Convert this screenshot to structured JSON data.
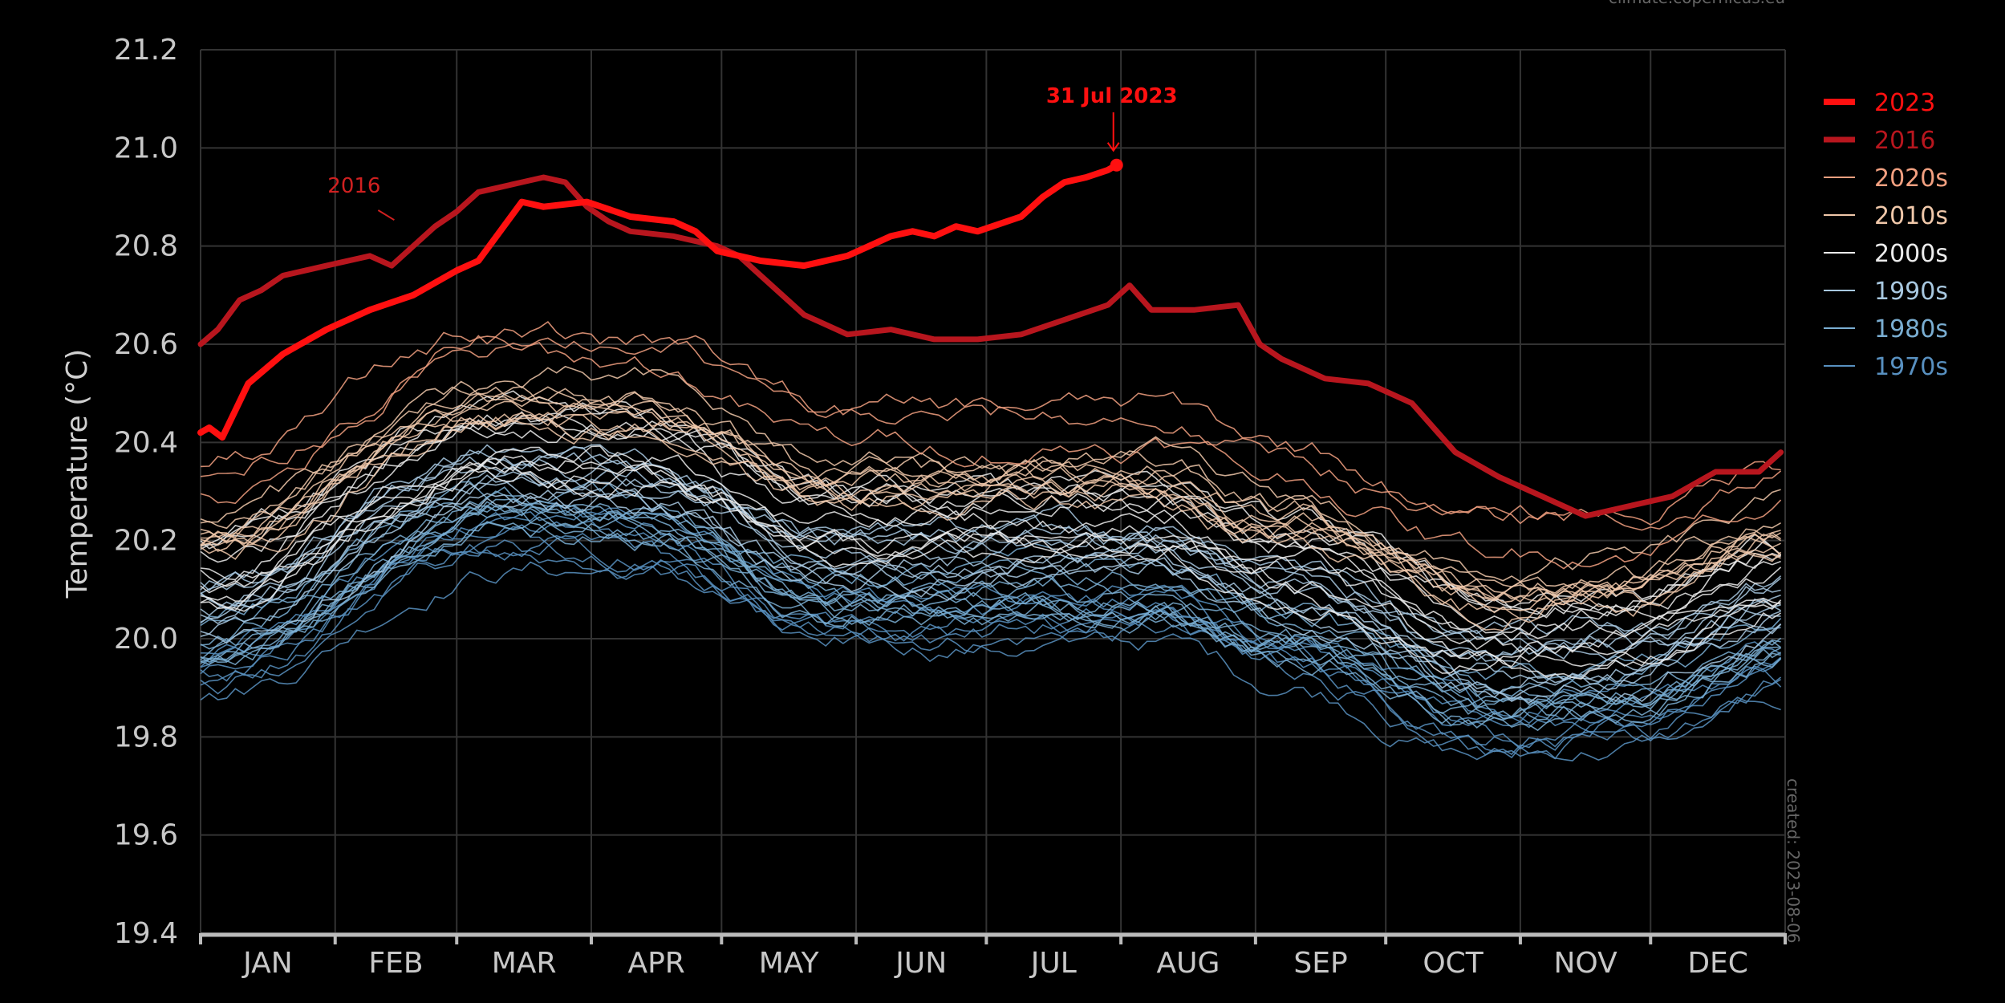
{
  "header": {
    "source_text": "climate.copernicus.eu"
  },
  "footer": {
    "created_text": "created: 2023-08-06"
  },
  "chart_data": {
    "type": "line",
    "title": "",
    "xlabel": "",
    "ylabel": "Temperature (°C)",
    "ylim": [
      19.4,
      21.2
    ],
    "yticks": [
      19.4,
      19.6,
      19.8,
      20.0,
      20.2,
      20.4,
      20.6,
      20.8,
      21.0,
      21.2
    ],
    "ytick_labels": [
      "19.4",
      "19.6",
      "19.8",
      "20.0",
      "20.2",
      "20.4",
      "20.6",
      "20.8",
      "21.0",
      "21.2"
    ],
    "xlim": [
      1,
      365
    ],
    "months": [
      "JAN",
      "FEB",
      "MAR",
      "APR",
      "MAY",
      "JUN",
      "JUL",
      "AUG",
      "SEP",
      "OCT",
      "NOV",
      "DEC"
    ],
    "month_starts": [
      1,
      32,
      60,
      91,
      121,
      152,
      182,
      213,
      244,
      274,
      305,
      335,
      366
    ],
    "grid": true,
    "legend_position": "right",
    "legend": [
      {
        "label": "2023",
        "color": "#ff1010",
        "width": 8
      },
      {
        "label": "2016",
        "color": "#b8161e",
        "width": 7
      },
      {
        "label": "2020s",
        "color": "#f2a080",
        "width": 2
      },
      {
        "label": "2010s",
        "color": "#f0c8aa",
        "width": 2
      },
      {
        "label": "2000s",
        "color": "#ececec",
        "width": 2
      },
      {
        "label": "1990s",
        "color": "#a8c8e0",
        "width": 2
      },
      {
        "label": "1980s",
        "color": "#7aaed2",
        "width": 2
      },
      {
        "label": "1970s",
        "color": "#5890c0",
        "width": 2
      }
    ],
    "annotations": [
      {
        "text": "31 Jul 2023",
        "x": 212,
        "y": 20.965,
        "color": "#ff1010"
      },
      {
        "text": "2016",
        "x": 53,
        "y": 20.84,
        "color": "#d02020"
      }
    ],
    "series": [
      {
        "name": "2023",
        "color": "#ff1010",
        "width": 8,
        "x": [
          1,
          3,
          6,
          12,
          20,
          30,
          40,
          50,
          60,
          65,
          70,
          75,
          80,
          90,
          100,
          110,
          115,
          120,
          125,
          130,
          140,
          150,
          155,
          160,
          165,
          170,
          175,
          180,
          190,
          195,
          200,
          205,
          210,
          212
        ],
        "y": [
          20.42,
          20.43,
          20.41,
          20.52,
          20.58,
          20.63,
          20.67,
          20.7,
          20.75,
          20.77,
          20.83,
          20.89,
          20.88,
          20.89,
          20.86,
          20.85,
          20.83,
          20.79,
          20.78,
          20.77,
          20.76,
          20.78,
          20.8,
          20.82,
          20.83,
          20.82,
          20.84,
          20.83,
          20.86,
          20.9,
          20.93,
          20.94,
          20.955,
          20.965
        ]
      },
      {
        "name": "2016",
        "color": "#b8161e",
        "width": 7,
        "x": [
          1,
          5,
          10,
          15,
          20,
          30,
          40,
          45,
          50,
          55,
          60,
          65,
          70,
          75,
          80,
          85,
          90,
          95,
          100,
          110,
          120,
          125,
          130,
          140,
          150,
          160,
          170,
          180,
          190,
          200,
          210,
          215,
          220,
          230,
          240,
          245,
          250,
          255,
          260,
          270,
          280,
          285,
          290,
          300,
          310,
          320,
          330,
          340,
          350,
          360,
          365
        ],
        "y": [
          20.6,
          20.63,
          20.69,
          20.71,
          20.74,
          20.76,
          20.78,
          20.76,
          20.8,
          20.84,
          20.87,
          20.91,
          20.92,
          20.93,
          20.94,
          20.93,
          20.88,
          20.85,
          20.83,
          20.82,
          20.8,
          20.78,
          20.74,
          20.66,
          20.62,
          20.63,
          20.61,
          20.61,
          20.62,
          20.65,
          20.68,
          20.72,
          20.67,
          20.67,
          20.68,
          20.6,
          20.57,
          20.55,
          20.53,
          20.52,
          20.48,
          20.43,
          20.38,
          20.33,
          20.29,
          20.25,
          20.27,
          20.29,
          20.34,
          20.34,
          20.38
        ]
      }
    ]
  }
}
